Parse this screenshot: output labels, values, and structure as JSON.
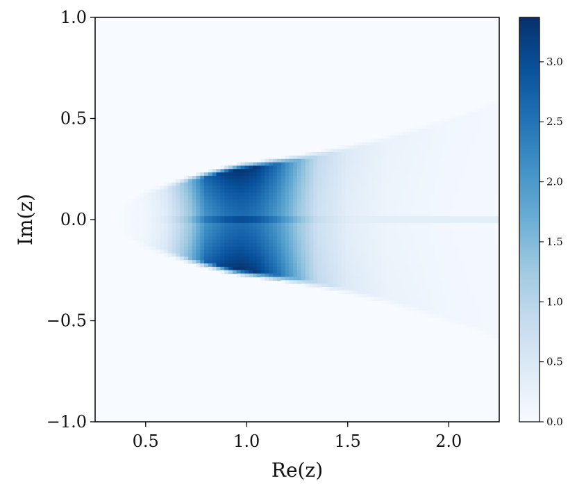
{
  "chart_data": {
    "type": "heatmap",
    "title": "",
    "xlabel": "Re(z)",
    "ylabel": "Im(z)",
    "xlim": [
      0.25,
      2.25
    ],
    "ylim": [
      -1.0,
      1.0
    ],
    "x_ticks": [
      0.5,
      1.0,
      1.5,
      2.0
    ],
    "x_tick_labels": [
      "0.5",
      "1.0",
      "1.5",
      "2.0"
    ],
    "y_ticks": [
      -1.0,
      -0.5,
      0.0,
      0.5,
      1.0
    ],
    "y_tick_labels": [
      "−1.0",
      "−0.5",
      "0.0",
      "0.5",
      "1.0"
    ],
    "grid": false,
    "colormap": "Blues",
    "colorbar": {
      "range": [
        0.0,
        3.37
      ],
      "ticks": [
        0.0,
        0.5,
        1.0,
        1.5,
        2.0,
        2.5,
        3.0
      ],
      "tick_labels": [
        "0.0",
        "0.5",
        "1.0",
        "1.5",
        "2.0",
        "2.5",
        "3.0"
      ],
      "placement": "right"
    },
    "density_profile": {
      "description_points_re": [
        0.35,
        0.5,
        0.6,
        0.72,
        0.8,
        0.9,
        0.97,
        1.05,
        1.15,
        1.25,
        1.35,
        1.5,
        1.7,
        2.0,
        2.25
      ],
      "peak_density": [
        0.0,
        0.15,
        0.5,
        1.6,
        2.7,
        3.2,
        3.35,
        3.2,
        2.6,
        1.7,
        0.9,
        0.45,
        0.22,
        0.12,
        0.08
      ],
      "wedge_half_width_im": [
        0.03,
        0.12,
        0.15,
        0.19,
        0.21,
        0.235,
        0.25,
        0.26,
        0.275,
        0.29,
        0.31,
        0.34,
        0.39,
        0.48,
        0.57
      ]
    }
  },
  "colors": {
    "colormap_stops": [
      "#f7fbff",
      "#deebf7",
      "#c6dbef",
      "#9ecae1",
      "#6baed6",
      "#4292c6",
      "#2171b5",
      "#08519c",
      "#08306b"
    ],
    "axis_color": "#000000",
    "background": "#ffffff"
  }
}
